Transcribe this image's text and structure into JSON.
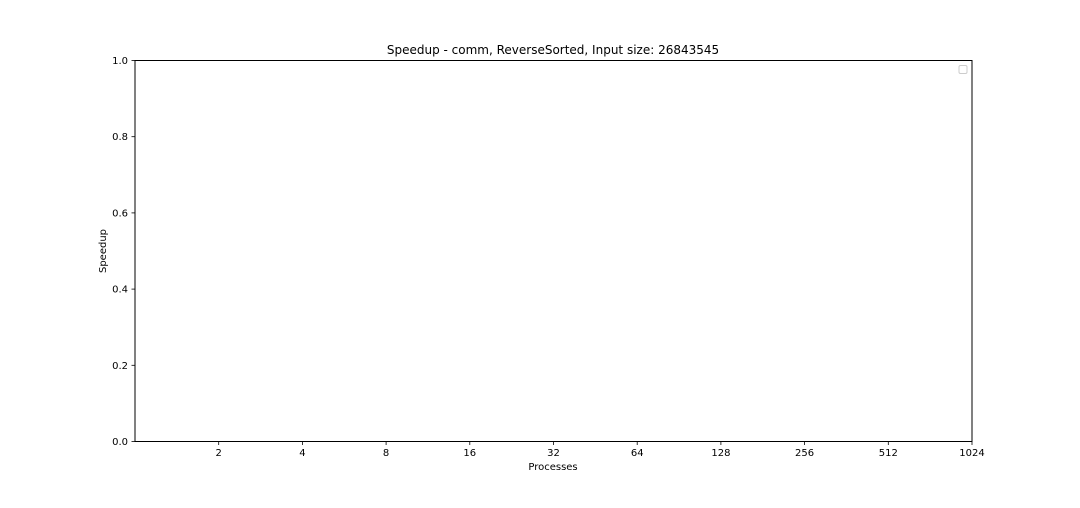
{
  "chart_data": {
    "type": "line",
    "title": "Speedup - comm, ReverseSorted, Input size: 26843545",
    "xlabel": "Processes",
    "ylabel": "Speedup",
    "x_scale": "log2",
    "x_ticks": [
      "2",
      "4",
      "8",
      "16",
      "32",
      "64",
      "128",
      "256",
      "512",
      "1024"
    ],
    "xlim": [
      1,
      1024
    ],
    "y_ticks": [
      "0.0",
      "0.2",
      "0.4",
      "0.6",
      "0.8",
      "1.0"
    ],
    "ylim": [
      0,
      1
    ],
    "series": [],
    "legend": {
      "placement": "top-right",
      "entries": []
    },
    "grid": false
  }
}
